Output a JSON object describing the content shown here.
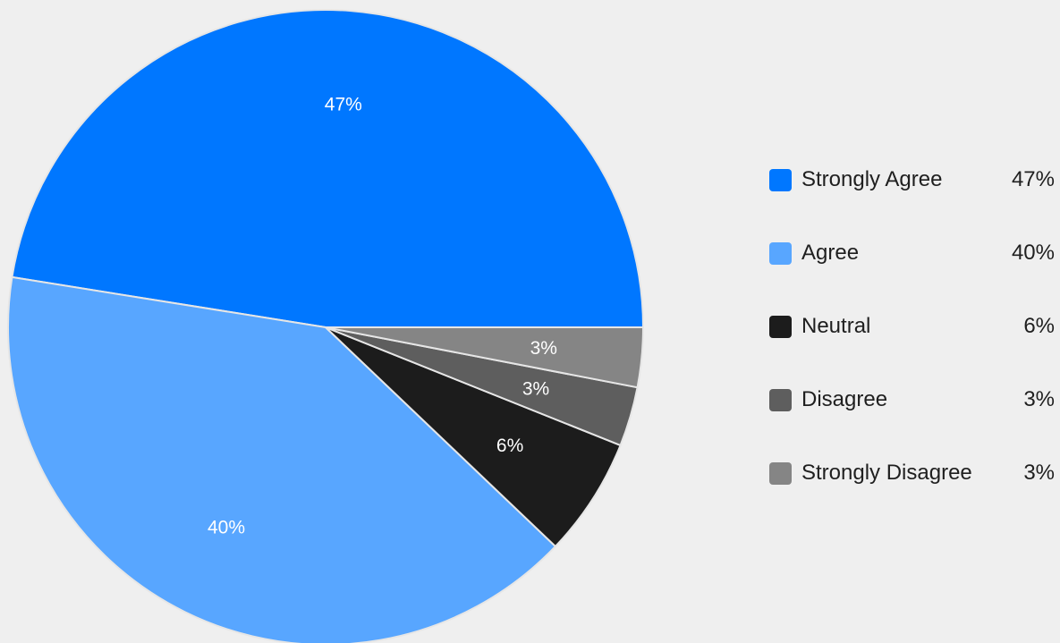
{
  "chart_data": {
    "type": "pie",
    "title": "",
    "start_angle_deg": 0,
    "direction": "counterclockwise",
    "legend_position": "right",
    "slices": [
      {
        "name": "Strongly Agree",
        "value": 47,
        "label": "47%",
        "color": "#0077ff"
      },
      {
        "name": "Agree",
        "value": 40,
        "label": "40%",
        "color": "#58a6ff"
      },
      {
        "name": "Neutral",
        "value": 6,
        "label": "6%",
        "color": "#1c1c1c"
      },
      {
        "name": "Disagree",
        "value": 3,
        "label": "3%",
        "color": "#5e5e5e"
      },
      {
        "name": "Strongly Disagree",
        "value": 3,
        "label": "3%",
        "color": "#858585"
      }
    ]
  },
  "legend": {
    "items": [
      {
        "label": "Strongly Agree",
        "value": "47%",
        "color": "#0077ff"
      },
      {
        "label": "Agree",
        "value": "40%",
        "color": "#58a6ff"
      },
      {
        "label": "Neutral",
        "value": "6%",
        "color": "#1c1c1c"
      },
      {
        "label": "Disagree",
        "value": "3%",
        "color": "#5e5e5e"
      },
      {
        "label": "Strongly Disagree",
        "value": "3%",
        "color": "#858585"
      }
    ]
  },
  "colors": {
    "background": "#efefef",
    "slice_border": "#e6e6e6",
    "label_text": "#ffffff",
    "legend_text": "#1f1f1f"
  }
}
